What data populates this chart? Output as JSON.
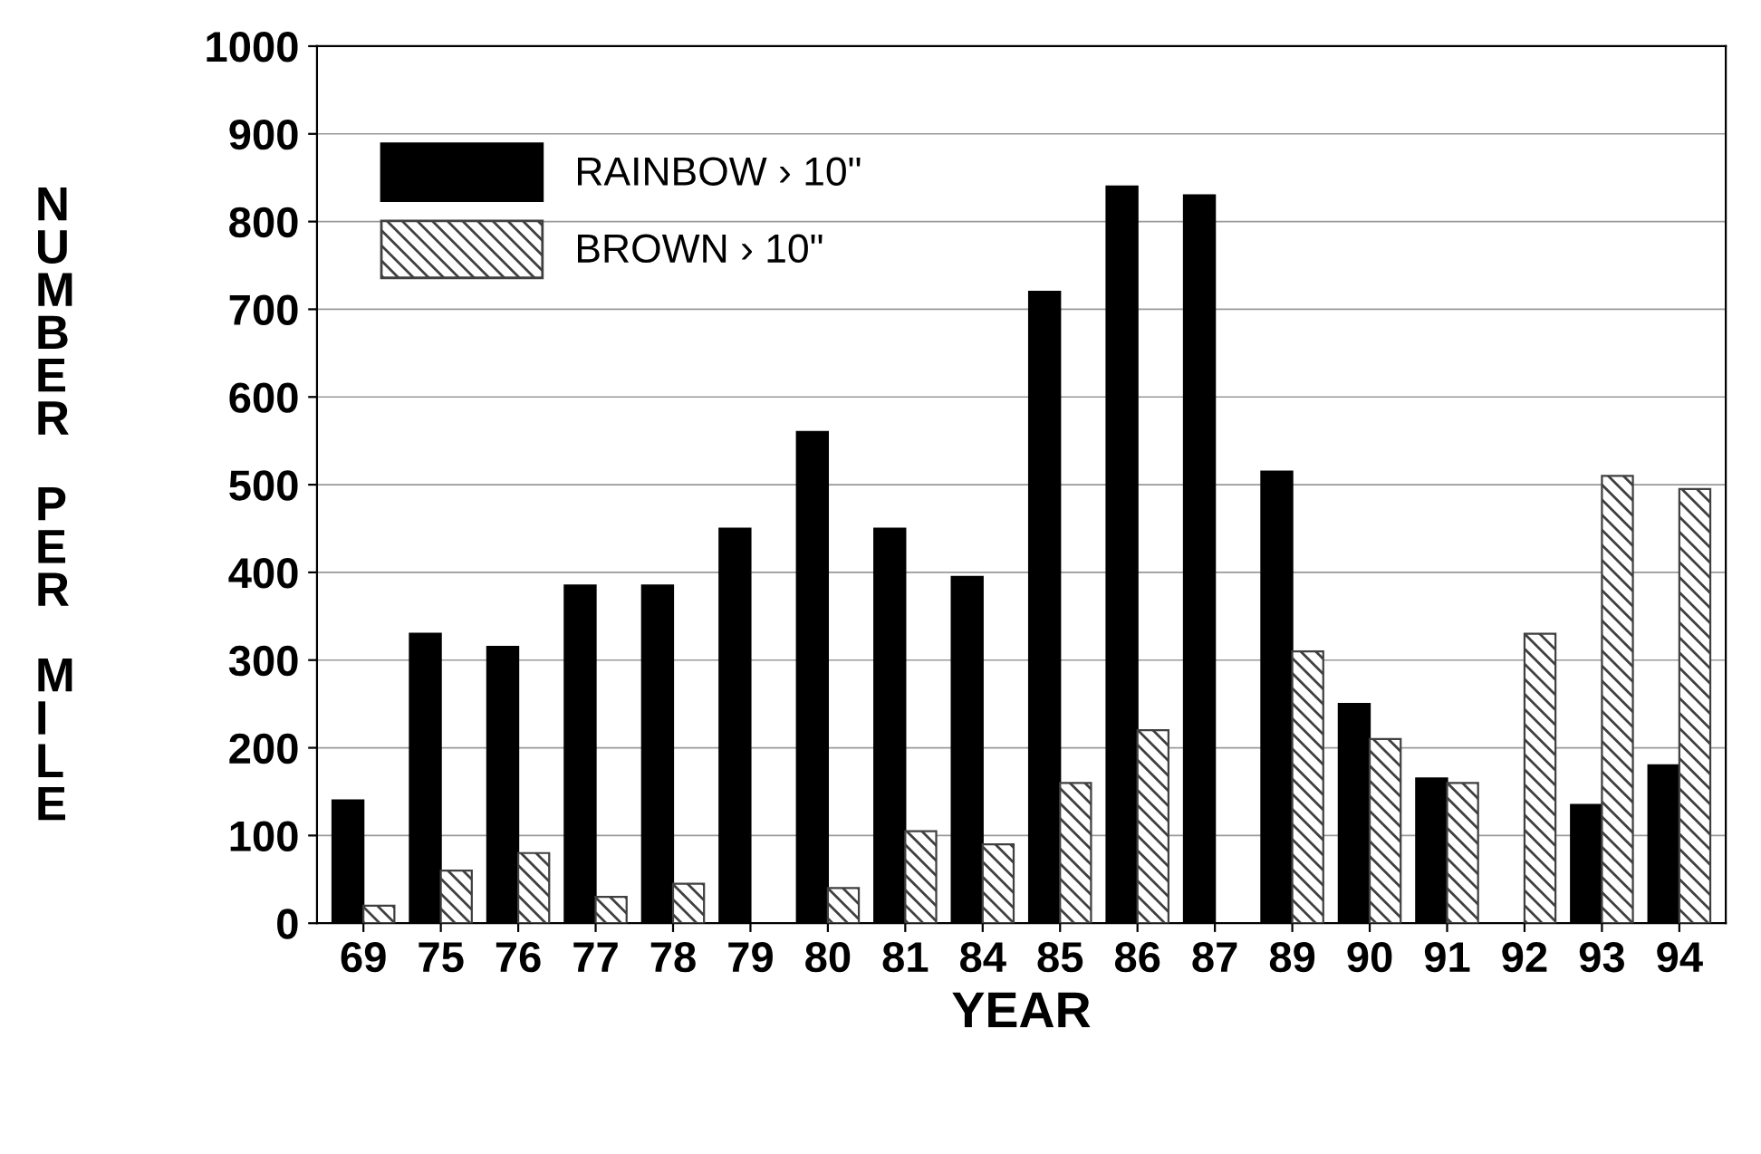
{
  "chart_data": {
    "type": "bar",
    "xlabel": "YEAR",
    "ylabel": "NUMBER PER MILE",
    "categories": [
      "69",
      "75",
      "76",
      "77",
      "78",
      "79",
      "80",
      "81",
      "84",
      "85",
      "86",
      "87",
      "89",
      "90",
      "91",
      "92",
      "93",
      "94"
    ],
    "series": [
      {
        "name": "RAINBOW › 10\"",
        "color": "#000000",
        "values": [
          140,
          330,
          315,
          385,
          385,
          450,
          560,
          450,
          395,
          720,
          840,
          830,
          515,
          250,
          165,
          null,
          135,
          180
        ]
      },
      {
        "name": "BROWN › 10\"",
        "color": "#404040",
        "values": [
          20,
          60,
          80,
          30,
          45,
          null,
          40,
          105,
          90,
          160,
          220,
          null,
          310,
          210,
          160,
          330,
          510,
          495
        ]
      }
    ],
    "ylim": [
      0,
      1000
    ],
    "yticks": [
      0,
      100,
      200,
      300,
      400,
      500,
      600,
      700,
      800,
      900,
      1000
    ],
    "grid": "y",
    "legend": "top left"
  }
}
